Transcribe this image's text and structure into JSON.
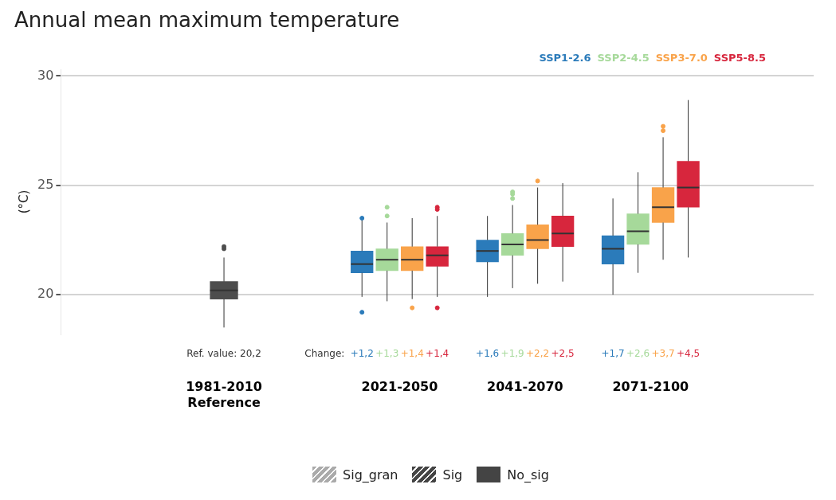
{
  "chart_data": {
    "type": "box",
    "title": "Annual mean maximum temperature",
    "ylabel": "(°C)",
    "categories": [
      "1981-2010\nReference",
      "2021-2050",
      "2041-2070",
      "2071-2100"
    ],
    "series": [
      {
        "color": "#4d4d4d",
        "boxes": [
          {
            "low": 18.5,
            "q1": 19.8,
            "median": 20.2,
            "q3": 20.6,
            "high": 21.7,
            "outliers": [
              22.1,
              22.2
            ]
          },
          null,
          null,
          null
        ]
      },
      {
        "name": "SSP1-2.6",
        "color": "#2b7bba",
        "boxes": [
          null,
          {
            "low": 19.9,
            "q1": 21.0,
            "median": 21.4,
            "q3": 22.0,
            "high": 23.4,
            "outliers": [
              19.2,
              23.5
            ]
          },
          {
            "low": 19.9,
            "q1": 21.5,
            "median": 22.0,
            "q3": 22.5,
            "high": 23.6
          },
          {
            "low": 20.0,
            "q1": 21.4,
            "median": 22.1,
            "q3": 22.7,
            "high": 24.4
          }
        ]
      },
      {
        "name": "SSP2-4.5",
        "color": "#a6d99a",
        "boxes": [
          null,
          {
            "low": 19.7,
            "q1": 21.1,
            "median": 21.6,
            "q3": 22.1,
            "high": 23.3,
            "outliers": [
              23.6,
              24.0
            ]
          },
          {
            "low": 20.3,
            "q1": 21.8,
            "median": 22.3,
            "q3": 22.8,
            "high": 24.1,
            "outliers": [
              24.4,
              24.6,
              24.7
            ]
          },
          {
            "low": 21.0,
            "q1": 22.3,
            "median": 22.9,
            "q3": 23.7,
            "high": 25.6
          }
        ]
      },
      {
        "name": "SSP3-7.0",
        "color": "#f9a34a",
        "boxes": [
          null,
          {
            "low": 19.8,
            "q1": 21.1,
            "median": 21.6,
            "q3": 22.2,
            "high": 23.5,
            "outliers": [
              19.4
            ]
          },
          {
            "low": 20.5,
            "q1": 22.1,
            "median": 22.5,
            "q3": 23.2,
            "high": 24.9,
            "outliers": [
              25.2
            ]
          },
          {
            "low": 21.6,
            "q1": 23.3,
            "median": 24.0,
            "q3": 24.9,
            "high": 27.2,
            "outliers": [
              27.5,
              27.7
            ]
          }
        ]
      },
      {
        "name": "SSP5-8.5",
        "color": "#d7263d",
        "boxes": [
          null,
          {
            "low": 19.9,
            "q1": 21.3,
            "median": 21.8,
            "q3": 22.2,
            "high": 23.6,
            "outliers": [
              19.4,
              23.9,
              24.0
            ]
          },
          {
            "low": 20.6,
            "q1": 22.2,
            "median": 22.8,
            "q3": 23.6,
            "high": 25.1
          },
          {
            "low": 21.7,
            "q1": 24.0,
            "median": 24.9,
            "q3": 26.1,
            "high": 28.9
          }
        ]
      }
    ],
    "ylim": [
      18.2,
      30.3
    ],
    "yticks": [
      20,
      25,
      30
    ],
    "grid": "y",
    "legend": "top right",
    "annotations": [
      "Ref. value: 20,2",
      "Change:",
      "+1,2",
      "+1,3",
      "+1,4",
      "+1,4",
      "+1,6",
      "+1,9",
      "+2,2",
      "+2,5",
      "+1,7",
      "+2,6",
      "+3,7",
      "+4,5",
      "Sig_gran",
      "Sig",
      "No_sig"
    ]
  }
}
